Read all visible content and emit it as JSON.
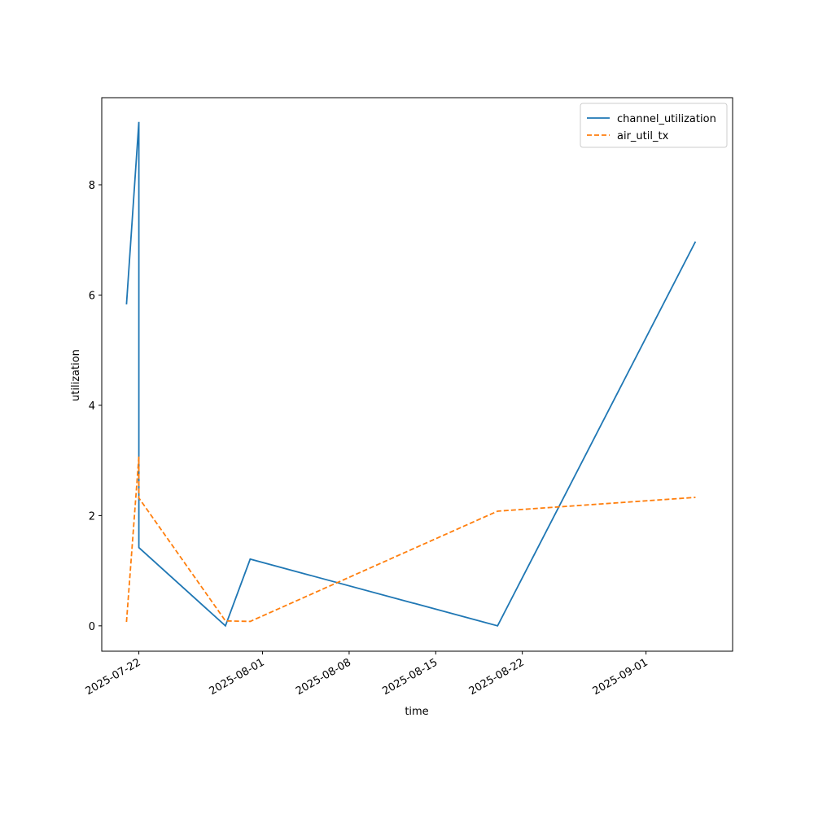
{
  "chart_data": {
    "type": "line",
    "xlabel": "time",
    "ylabel": "utilization",
    "x": [
      "2025-07-21",
      "2025-07-22",
      "2025-07-22",
      "2025-07-29",
      "2025-07-31",
      "2025-08-20",
      "2025-09-05"
    ],
    "series": [
      {
        "name": "channel_utilization",
        "color": "#1f77b4",
        "linestyle": "solid",
        "values": [
          5.83,
          9.14,
          1.42,
          0,
          1.21,
          0,
          6.97
        ]
      },
      {
        "name": "air_util_tx",
        "color": "#ff7f0e",
        "linestyle": "dashed",
        "values": [
          0.07,
          3.07,
          2.32,
          0.09,
          0.08,
          2.08,
          2.33
        ]
      }
    ],
    "xlim": [
      "2025-07-19",
      "2025-09-08"
    ],
    "xticks": [
      "2025-07-22",
      "2025-08-01",
      "2025-08-08",
      "2025-08-15",
      "2025-08-22",
      "2025-09-01"
    ],
    "ylim": [
      -0.46,
      9.58
    ],
    "yticks": [
      0,
      2,
      4,
      6,
      8
    ],
    "grid": false,
    "legend": "upper right"
  }
}
